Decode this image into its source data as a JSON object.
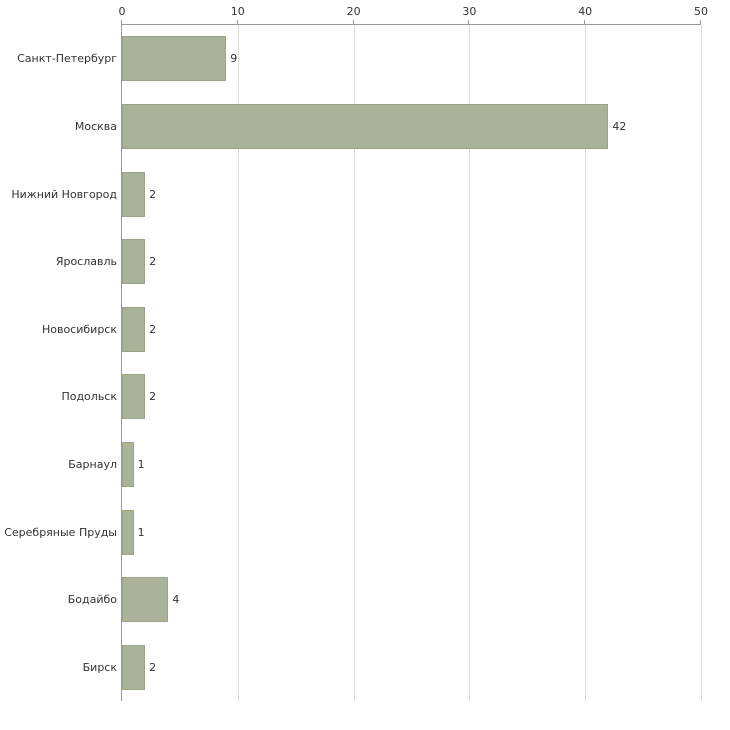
{
  "chart_data": {
    "type": "bar",
    "orientation": "horizontal",
    "title": "",
    "xlabel": "",
    "ylabel": "",
    "categories": [
      "Санкт-Петербург",
      "Москва",
      "Нижний Новгород",
      "Ярославль",
      "Новосибирск",
      "Подольск",
      "Барнаул",
      "Серебряные Пруды",
      "Бодайбо",
      "Бирск"
    ],
    "values": [
      9,
      42,
      2,
      2,
      2,
      2,
      1,
      1,
      4,
      2
    ],
    "xlim": [
      0,
      50
    ],
    "x_ticks": [
      0,
      10,
      20,
      30,
      40,
      50
    ],
    "grid": true,
    "axis_position": "top",
    "bar_color": "#aab399",
    "bar_border_color": "#9aa587",
    "gridline_color": "#d9d9d9",
    "axis_line_color": "#9a9a9a",
    "text_color": "#333333"
  }
}
